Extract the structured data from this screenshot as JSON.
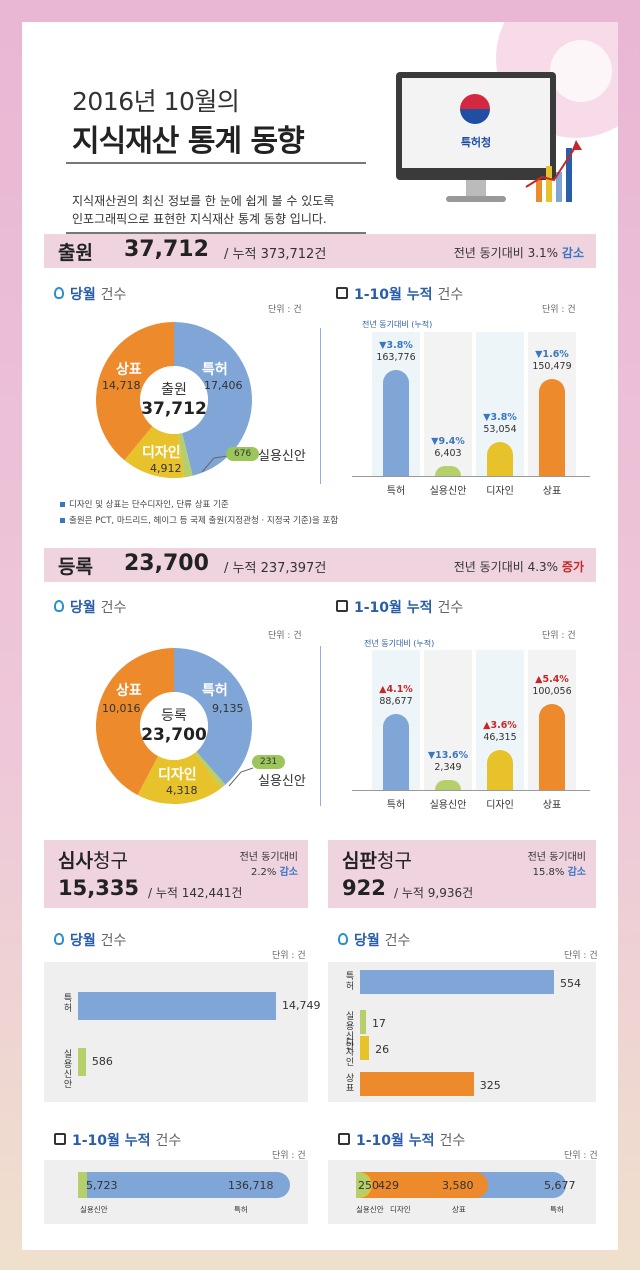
{
  "header": {
    "title_line1": "2016년 10월의",
    "title_line2": "지식재산 통계 동향",
    "desc_line1": "지식재산권의 최신 정보를 한 눈에 쉽게 볼 수 있도록",
    "desc_line2": "인포그래픽으로 표현한 지식재산 통계 동향 입니다.",
    "logo_text": "특허청"
  },
  "colors": {
    "patent": "#7fa6d6",
    "utility": "#b5cf6b",
    "design": "#e8c22a",
    "trademark": "#ec8a2c",
    "accent": "#3a77c0",
    "banner": "#efd3df"
  },
  "application": {
    "label": "출원",
    "count": "37,712",
    "cumulative": "/ 누적 373,712건",
    "yoy_prefix": "전년 동기대비 3.1%",
    "yoy_dir": "감소",
    "monthly_title_bold": "당월",
    "monthly_title_light": "건수",
    "unit": "단위 : 건",
    "cum_title_bold": "1-10월 누적",
    "cum_title_light": "건수",
    "yoy_caption": "전년 동기대비 (누적)",
    "center_label": "출원",
    "center_value": "37,712",
    "notes": [
      "디자인 및 상표는 단수디자인, 단류 상표 기준",
      "출원은 PCT, 마드리드, 헤이그 등 국제 출원(지정관청 · 지정국 기준)을 포함"
    ]
  },
  "registration": {
    "label": "등록",
    "count": "23,700",
    "cumulative": "/ 누적 237,397건",
    "yoy_prefix": "전년 동기대비 4.3%",
    "yoy_dir": "증가",
    "monthly_title_bold": "당월",
    "monthly_title_light": "건수",
    "unit": "단위 : 건",
    "cum_title_bold": "1-10월 누적",
    "cum_title_light": "건수",
    "yoy_caption": "전년 동기대비 (누적)",
    "center_label": "등록",
    "center_value": "23,700"
  },
  "examination": {
    "label_bold": "심사",
    "label_light": "청구",
    "count": "15,335",
    "cumulative": "/ 누적 142,441건",
    "yoy_line1": "전년 동기대비",
    "yoy_line2": "2.2%",
    "yoy_dir": "감소",
    "monthly_title_bold": "당월",
    "monthly_title_light": "건수",
    "unit": "단위 : 건",
    "cum_title_bold": "1-10월 누적",
    "cum_title_light": "건수"
  },
  "trial": {
    "label_bold": "심판",
    "label_light": "청구",
    "count": "922",
    "cumulative": "/ 누적 9,936건",
    "yoy_line1": "전년 동기대비",
    "yoy_line2": "15.8%",
    "yoy_dir": "감소",
    "monthly_title_bold": "당월",
    "monthly_title_light": "건수",
    "unit": "단위 : 건",
    "cum_title_bold": "1-10월 누적",
    "cum_title_light": "건수"
  },
  "chart_data": [
    {
      "type": "pie",
      "id": "app-monthly",
      "categories": [
        "특허",
        "실용신안",
        "디자인",
        "상표"
      ],
      "values": [
        17406,
        676
      ],
      "labels": [
        "17,406",
        "676"
      ],
      "all_values": [
        17406,
        676,
        4912,
        14718
      ],
      "all_labels": [
        "17,406",
        "676",
        "4,912",
        "14,718"
      ]
    },
    {
      "type": "bar",
      "id": "app-cumulative",
      "categories": [
        "특허",
        "실용신안",
        "디자인",
        "상표"
      ],
      "values": [
        163776,
        6403,
        53054,
        150479
      ],
      "labels": [
        "163,776",
        "6,403",
        "53,054",
        "150,479"
      ],
      "yoy": [
        "▼3.8%",
        "▼9.4%",
        "▼3.8%",
        "▼1.6%"
      ]
    },
    {
      "type": "pie",
      "id": "reg-monthly",
      "categories": [
        "특허",
        "실용신안",
        "디자인",
        "상표"
      ],
      "values": [
        9135,
        231,
        4318,
        10016
      ],
      "labels": [
        "9,135",
        "231",
        "4,318",
        "10,016"
      ]
    },
    {
      "type": "bar",
      "id": "reg-cumulative",
      "categories": [
        "특허",
        "실용신안",
        "디자인",
        "상표"
      ],
      "values": [
        88677,
        2349,
        46315,
        100056
      ],
      "labels": [
        "88,677",
        "2,349",
        "46,315",
        "100,056"
      ],
      "yoy": [
        "▲4.1%",
        "▼13.6%",
        "▲3.6%",
        "▲5.4%"
      ]
    },
    {
      "type": "bar",
      "id": "exam-monthly",
      "orientation": "horizontal",
      "categories": [
        "특허",
        "실용신안"
      ],
      "values": [
        14749,
        586
      ],
      "labels": [
        "14,749",
        "586"
      ]
    },
    {
      "type": "bar",
      "id": "trial-monthly",
      "orientation": "horizontal",
      "categories": [
        "특허",
        "실용신안",
        "디자인",
        "상표"
      ],
      "values": [
        554,
        17,
        26,
        325
      ],
      "labels": [
        "554",
        "17",
        "26",
        "325"
      ]
    },
    {
      "type": "bar",
      "id": "exam-cumulative",
      "orientation": "horizontal-stacked",
      "categories": [
        "실용신안",
        "특허"
      ],
      "values": [
        5723,
        136718
      ],
      "labels": [
        "5,723",
        "136,718"
      ]
    },
    {
      "type": "bar",
      "id": "trial-cumulative",
      "orientation": "horizontal-stacked",
      "categories": [
        "실용신안",
        "디자인",
        "상표",
        "특허"
      ],
      "values": [
        250,
        429,
        3580,
        5677
      ],
      "labels": [
        "250",
        "429",
        "3,580",
        "5,677"
      ]
    }
  ]
}
